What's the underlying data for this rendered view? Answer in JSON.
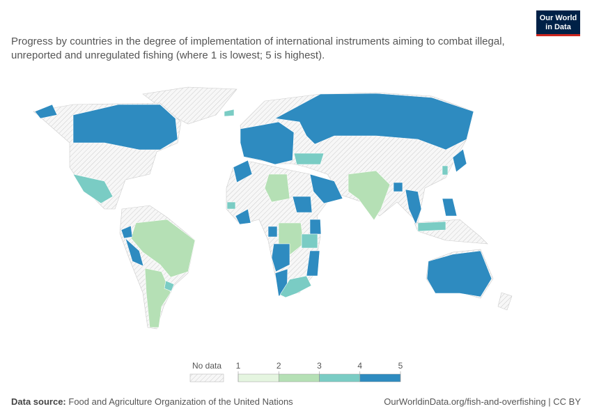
{
  "logo": [
    "Our World",
    "in Data"
  ],
  "title": "Progress by countries in the degree of implementation of international instruments aiming to combat illegal, unreported and unregulated fishing (where 1 is lowest; 5 is highest).",
  "map": {
    "values": [
      5,
      5,
      4,
      3,
      5,
      3,
      5,
      4,
      5,
      4,
      5,
      4,
      3,
      5,
      5,
      5,
      5,
      3,
      4,
      5,
      5,
      5,
      5,
      5,
      4,
      4,
      3,
      5,
      5,
      5,
      4,
      5,
      4,
      5
    ]
  },
  "legend": {
    "no_data_label": "No data",
    "bins": [
      1,
      2,
      3,
      4,
      5
    ],
    "colors": [
      "#e5f5e0",
      "#b5e0b5",
      "#7accc4",
      "#2e8bc0"
    ]
  },
  "source": {
    "label": "Data source:",
    "text": "Food and Agriculture Organization of the United Nations"
  },
  "url": "OurWorldinData.org/fish-and-overfishing | CC BY"
}
